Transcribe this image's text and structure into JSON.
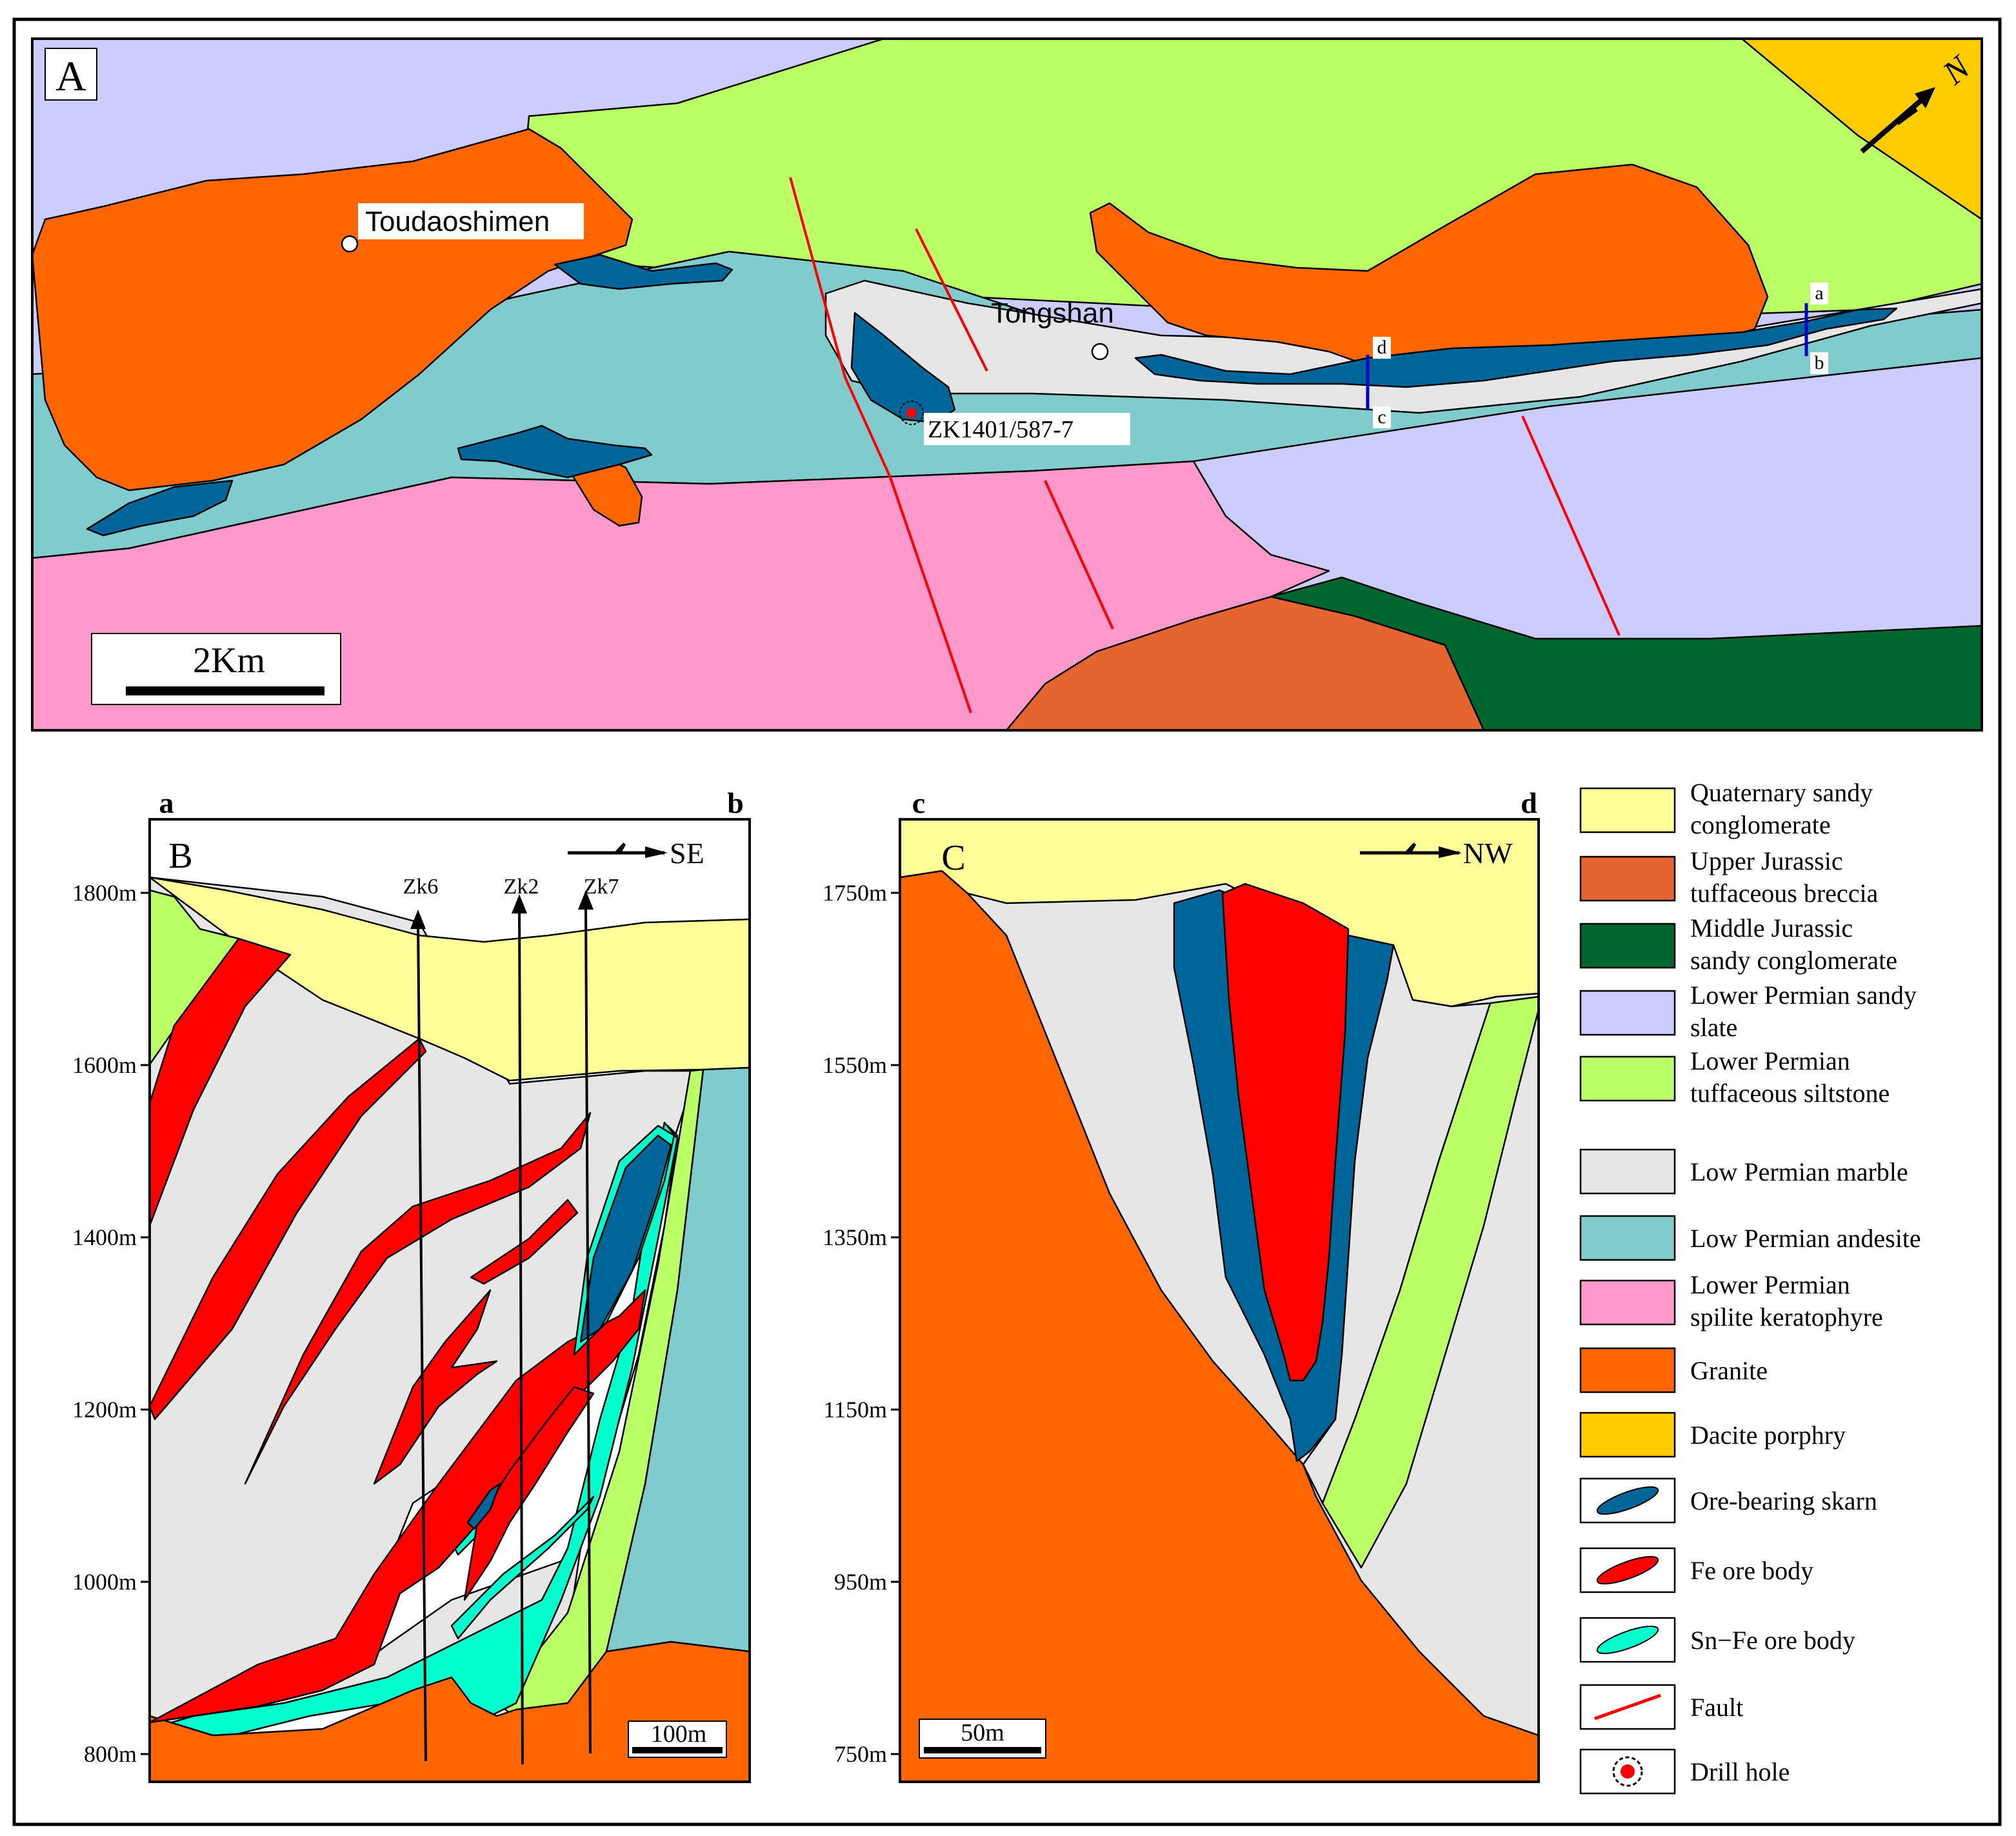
{
  "colors": {
    "quaternary": "#FFFF99",
    "upper_jurassic": "#E46530",
    "middle_jurassic": "#006630",
    "sandy_slate": "#CCCCFF",
    "siltstone": "#BBFF66",
    "marble": "#E6E6E6",
    "andesite": "#80CCCC",
    "spilite": "#FF99CC",
    "granite": "#FF6600",
    "dacite": "#FFCC00",
    "skarn": "#006699",
    "fe_ore": "#FF0000",
    "sn_fe_ore": "#00FFCC",
    "fault": "#FF0000",
    "section_line": "#0000CC"
  },
  "map": {
    "panel_label": "A",
    "north_label": "N",
    "scale_label": "2Km",
    "places": {
      "toudaoshimen": "Toudaoshimen",
      "tongshan": "Tongshan",
      "drillhole": "ZK1401/587-7"
    },
    "section_ends": {
      "a": "a",
      "b": "b",
      "c": "c",
      "d": "d"
    }
  },
  "section_b": {
    "panel_label": "B",
    "left_end": "a",
    "right_end": "b",
    "direction": "SE",
    "elevations": [
      "1800m",
      "1600m",
      "1400m",
      "1200m",
      "1000m",
      "800m"
    ],
    "drillholes": [
      "Zk6",
      "Zk2",
      "Zk7"
    ],
    "scale_label": "100m"
  },
  "section_c": {
    "panel_label": "C",
    "left_end": "c",
    "right_end": "d",
    "direction": "NW",
    "elevations": [
      "1750m",
      "1550m",
      "1350m",
      "1150m",
      "950m",
      "750m"
    ],
    "scale_label": "50m"
  },
  "legend": [
    {
      "key": "quaternary",
      "lines": [
        "Quaternary sandy",
        "conglomerate"
      ]
    },
    {
      "key": "upper_jurassic",
      "lines": [
        "Upper Jurassic",
        "tuffaceous breccia"
      ]
    },
    {
      "key": "middle_jurassic",
      "lines": [
        "Middle Jurassic",
        "sandy conglomerate"
      ]
    },
    {
      "key": "sandy_slate",
      "lines": [
        "Lower Permian  sandy",
        "slate"
      ]
    },
    {
      "key": "siltstone",
      "lines": [
        "Lower Permian",
        "tuffaceous siltstone"
      ]
    },
    {
      "key": "marble",
      "lines": [
        "Low Permian marble"
      ]
    },
    {
      "key": "andesite",
      "lines": [
        "Low Permian andesite"
      ]
    },
    {
      "key": "spilite",
      "lines": [
        "Lower Permian",
        "spilite keratophyre"
      ]
    },
    {
      "key": "granite",
      "lines": [
        "Granite"
      ]
    },
    {
      "key": "dacite",
      "lines": [
        "Dacite porphry"
      ]
    },
    {
      "key": "skarn",
      "lines": [
        "Ore-bearing skarn"
      ]
    },
    {
      "key": "fe_ore",
      "lines": [
        "Fe ore body"
      ]
    },
    {
      "key": "sn_fe_ore",
      "lines": [
        "Sn−Fe ore body"
      ]
    },
    {
      "key": "fault",
      "lines": [
        "Fault"
      ]
    },
    {
      "key": "drillhole",
      "lines": [
        "Drill hole"
      ]
    }
  ]
}
